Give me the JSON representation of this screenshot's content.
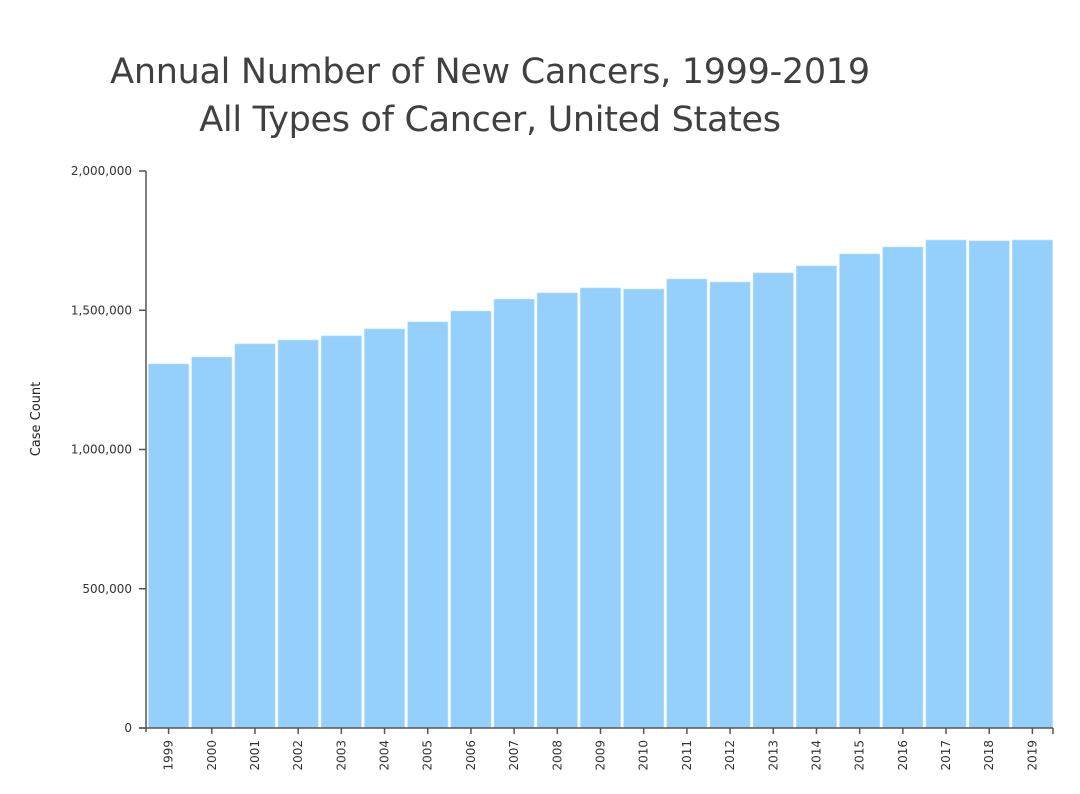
{
  "chart_data": {
    "type": "bar",
    "title": "Annual Number of New Cancers, 1999-2019",
    "subtitle": "All Types of Cancer, United States",
    "xlabel": "",
    "ylabel": "Case Count",
    "ylim": [
      0,
      2000000
    ],
    "yticks": [
      0,
      500000,
      1000000,
      1500000,
      2000000
    ],
    "ytick_labels": [
      "0",
      "500,000",
      "1,000,000",
      "1,500,000",
      "2,000,000"
    ],
    "grid": false,
    "legend": "none",
    "bar_color": "#94d0fb",
    "categories": [
      "1999",
      "2000",
      "2001",
      "2002",
      "2003",
      "2004",
      "2005",
      "2006",
      "2007",
      "2008",
      "2009",
      "2010",
      "2011",
      "2012",
      "2013",
      "2014",
      "2015",
      "2016",
      "2017",
      "2018",
      "2019"
    ],
    "values": [
      1307000,
      1332000,
      1379000,
      1393000,
      1408000,
      1433000,
      1458000,
      1497000,
      1540000,
      1562000,
      1580000,
      1576000,
      1612000,
      1601000,
      1634000,
      1659000,
      1702000,
      1727000,
      1752000,
      1749000,
      1752000
    ]
  }
}
